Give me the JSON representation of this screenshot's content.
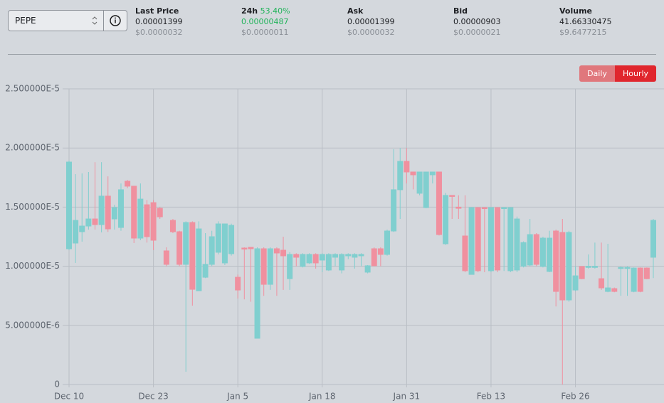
{
  "selector": {
    "value": "PEPE"
  },
  "stats": [
    {
      "label": "Last Price",
      "value": "0.00001399",
      "usd": "$0.0000032"
    },
    {
      "label": "24h",
      "change": "53.40%",
      "value": "0.00000487",
      "usd": "$0.0000011"
    },
    {
      "label": "Ask",
      "value": "0.00001399",
      "usd": "$0.0000032"
    },
    {
      "label": "Bid",
      "value": "0.00000903",
      "usd": "$0.0000021"
    },
    {
      "label": "Volume",
      "value": "41.66330475",
      "usd": "$9.6477215"
    }
  ],
  "buttons": [
    {
      "label": "Daily",
      "active": false
    },
    {
      "label": "Hourly",
      "active": true
    }
  ],
  "chart_data": {
    "type": "candlestick",
    "up_color": "#80cfcf",
    "down_color": "#f0909f",
    "grid": true,
    "ylim": [
      0,
      2.5e-05
    ],
    "yticks": [
      {
        "value": 0,
        "label": "0"
      },
      {
        "value": 5e-06,
        "label": "5.000000E-6"
      },
      {
        "value": 1e-05,
        "label": "1.000000E-5"
      },
      {
        "value": 1.5e-05,
        "label": "1.500000E-5"
      },
      {
        "value": 2e-05,
        "label": "2.000000E-5"
      },
      {
        "value": 2.5e-05,
        "label": "2.500000E-5"
      }
    ],
    "categories": [
      "Dec 10",
      null,
      null,
      null,
      null,
      null,
      null,
      null,
      null,
      null,
      null,
      null,
      null,
      "Dec 23",
      null,
      null,
      null,
      null,
      null,
      null,
      null,
      null,
      null,
      null,
      null,
      null,
      "Jan 5",
      null,
      null,
      null,
      null,
      null,
      null,
      null,
      null,
      null,
      null,
      null,
      null,
      "Jan 18",
      null,
      null,
      null,
      null,
      null,
      null,
      null,
      null,
      null,
      null,
      null,
      null,
      "Jan 31",
      null,
      null,
      null,
      null,
      null,
      null,
      null,
      null,
      null,
      null,
      null,
      null,
      "Feb 13",
      null,
      null,
      null,
      null,
      null,
      null,
      null,
      null,
      null,
      null,
      null,
      null,
      "Feb 26",
      null,
      null,
      null,
      null,
      null,
      null,
      null,
      null,
      null,
      null,
      null,
      null
    ],
    "open": [
      1.148e-05,
      1.196e-05,
      1.292e-05,
      1.34e-05,
      1.4e-05,
      1.352e-05,
      1.593e-05,
      1.4e-05,
      1.328e-05,
      1.719e-05,
      1.677e-05,
      1.238e-05,
      1.52e-05,
      1.538e-05,
      1.49e-05,
      1.13e-05,
      1.388e-05,
      1.292e-05,
      1.016e-05,
      1.37e-05,
      7.93e-06,
      9.07e-06,
      1.016e-05,
      1.118e-05,
      1.028e-05,
      1.106e-05,
      9.07e-06,
      1.154e-05,
      1.16e-05,
      3.91e-06,
      1.148e-05,
      8.47e-06,
      1.148e-05,
      1.136e-05,
      8.95e-06,
      1.1e-05,
      9.98e-06,
      1.028e-05,
      1.1e-05,
      1.052e-05,
      9.68e-06,
      1.076e-05,
      9.68e-06,
      1.088e-05,
      1.076e-05,
      1.088e-05,
      9.5e-06,
      1.148e-05,
      1.148e-05,
      1.1e-05,
      1.298e-05,
      1.647e-05,
      1.887e-05,
      1.797e-05,
      1.617e-05,
      1.496e-05,
      1.773e-05,
      1.797e-05,
      1.19e-05,
      1.599e-05,
      1.5e-05,
      1.256e-05,
      9.31e-06,
      1.496e-05,
      1.496e-05,
      9.62e-06,
      1.496e-05,
      1.49e-05,
      9.62e-06,
      9.68e-06,
      1e-05,
      1.01e-05,
      1.268e-05,
      9.98e-06,
      9.56e-06,
      1.298e-05,
      1.286e-05,
      7.15e-06,
      7.99e-06,
      9.98e-06,
      9.9e-06,
      9.9e-06,
      8.95e-06,
      7.87e-06,
      8.11e-06,
      9.85e-06,
      9.85e-06,
      7.87e-06,
      9.85e-06,
      9.85e-06,
      1.076e-05
    ],
    "close": [
      1.881e-05,
      1.388e-05,
      1.34e-05,
      1.4e-05,
      1.352e-05,
      1.593e-05,
      1.316e-05,
      1.496e-05,
      1.647e-05,
      1.677e-05,
      1.238e-05,
      1.568e-05,
      1.25e-05,
      1.22e-05,
      1.418e-05,
      1.016e-05,
      1.292e-05,
      1.016e-05,
      1.37e-05,
      8.05e-06,
      1.316e-05,
      1.016e-05,
      1.25e-05,
      1.358e-05,
      1.358e-05,
      1.346e-05,
      7.99e-06,
      1.148e-05,
      1.148e-05,
      1.148e-05,
      8.47e-06,
      1.148e-05,
      1.112e-05,
      1.088e-05,
      1.1e-05,
      1.076e-05,
      1.1e-05,
      1.1e-05,
      1.028e-05,
      1.1e-05,
      1.1e-05,
      1.1e-05,
      1.1e-05,
      1.1e-05,
      1.1e-05,
      1.1e-05,
      1.004e-05,
      1.004e-05,
      1.1e-05,
      1.298e-05,
      1.647e-05,
      1.887e-05,
      1.797e-05,
      1.773e-05,
      1.797e-05,
      1.797e-05,
      1.797e-05,
      1.268e-05,
      1.599e-05,
      1.59e-05,
      1.49e-05,
      9.62e-06,
      1.496e-05,
      9.62e-06,
      1.49e-05,
      1.496e-05,
      9.68e-06,
      1.496e-05,
      1.496e-05,
      1.4e-05,
      1.2e-05,
      1.268e-05,
      1.016e-05,
      1.238e-05,
      1.238e-05,
      7.87e-06,
      7.15e-06,
      1.286e-05,
      9.19e-06,
      8.95e-06,
      1e-05,
      1e-05,
      8.17e-06,
      8.17e-06,
      7.87e-06,
      9.9e-06,
      9.9e-06,
      9.85e-06,
      7.87e-06,
      8.95e-06,
      1.388e-05
    ],
    "high": [
      1.893e-05,
      1.779e-05,
      1.785e-05,
      1.797e-05,
      1.88e-05,
      1.88e-05,
      1.76e-05,
      1.52e-05,
      1.7e-05,
      1.73e-05,
      1.68e-05,
      1.7e-05,
      1.56e-05,
      1.56e-05,
      1.5e-05,
      1.16e-05,
      1.4e-05,
      1.3e-05,
      1.38e-05,
      1.38e-05,
      1.38e-05,
      1.28e-05,
      1.3e-05,
      1.38e-05,
      1.36e-05,
      1.36e-05,
      9.3e-06,
      1.16e-05,
      1.16e-05,
      1.16e-05,
      1.16e-05,
      1.16e-05,
      1.16e-05,
      1.25e-05,
      1.12e-05,
      1.11e-05,
      1.11e-05,
      1.11e-05,
      1.11e-05,
      1.11e-05,
      1.11e-05,
      1.11e-05,
      1.11e-05,
      1.11e-05,
      1.11e-05,
      1.11e-05,
      1.01e-05,
      1.16e-05,
      1.16e-05,
      1.31e-05,
      1.99e-05,
      2e-05,
      2e-05,
      1.8e-05,
      1.8e-05,
      1.8e-05,
      1.8e-05,
      1.8e-05,
      1.62e-05,
      1.6e-05,
      1.6e-05,
      1.6e-05,
      1.5e-05,
      1.5e-05,
      1.5e-05,
      1.5e-05,
      1.5e-05,
      1.5e-05,
      1.5e-05,
      1.42e-05,
      1.21e-05,
      1.4e-05,
      1.28e-05,
      1.25e-05,
      1.3e-05,
      1.31e-05,
      1.4e-05,
      1.3e-05,
      1e-05,
      1e-05,
      1.1e-05,
      1.2e-05,
      1.2e-05,
      1.19e-05,
      8.2e-06,
      1e-05,
      1e-05,
      9.9e-06,
      9.9e-06,
      9.9e-06,
      1.4e-05
    ],
    "low": [
      1.136e-05,
      1.028e-05,
      1.208e-05,
      1.31e-05,
      1.31e-05,
      1.286e-05,
      1.29e-05,
      1.31e-05,
      1.3e-05,
      1.66e-05,
      1.196e-05,
      1.22e-05,
      1.2e-05,
      1.136e-05,
      1.4e-05,
      1e-05,
      1.28e-05,
      1e-05,
      1.08e-06,
      6.67e-06,
      7.9e-06,
      9e-06,
      1e-05,
      1.1e-05,
      1.01e-05,
      1.09e-05,
      7.27e-06,
      7.2e-06,
      7e-06,
      3.91e-06,
      7.5e-06,
      8e-06,
      7.5e-06,
      8e-06,
      8e-06,
      1e-05,
      9.9e-06,
      1.02e-05,
      9.8e-06,
      9.5e-06,
      9.6e-06,
      1e-05,
      9.4e-06,
      1.06e-05,
      9.8e-06,
      1e-05,
      9.4e-06,
      1e-05,
      1e-05,
      1.09e-05,
      1.29e-05,
      1.4e-05,
      1.7e-05,
      1.65e-05,
      1.6e-05,
      1.49e-05,
      1.7e-05,
      1.26e-05,
      1.18e-05,
      1.4e-05,
      1.4e-05,
      9.5e-06,
      9.3e-06,
      9.5e-06,
      9.5e-06,
      9.5e-06,
      9.5e-06,
      9.6e-06,
      9.5e-06,
      9.5e-06,
      9.9e-06,
      1e-05,
      1e-05,
      9.9e-06,
      9.5e-06,
      6.6e-06,
      0,
      7e-06,
      7.9e-06,
      8.9e-06,
      9.8e-06,
      9.8e-06,
      8e-06,
      7.8e-06,
      7.8e-06,
      7.5e-06,
      7.5e-06,
      7.8e-06,
      7.8e-06,
      8.9e-06,
      9e-06
    ]
  }
}
